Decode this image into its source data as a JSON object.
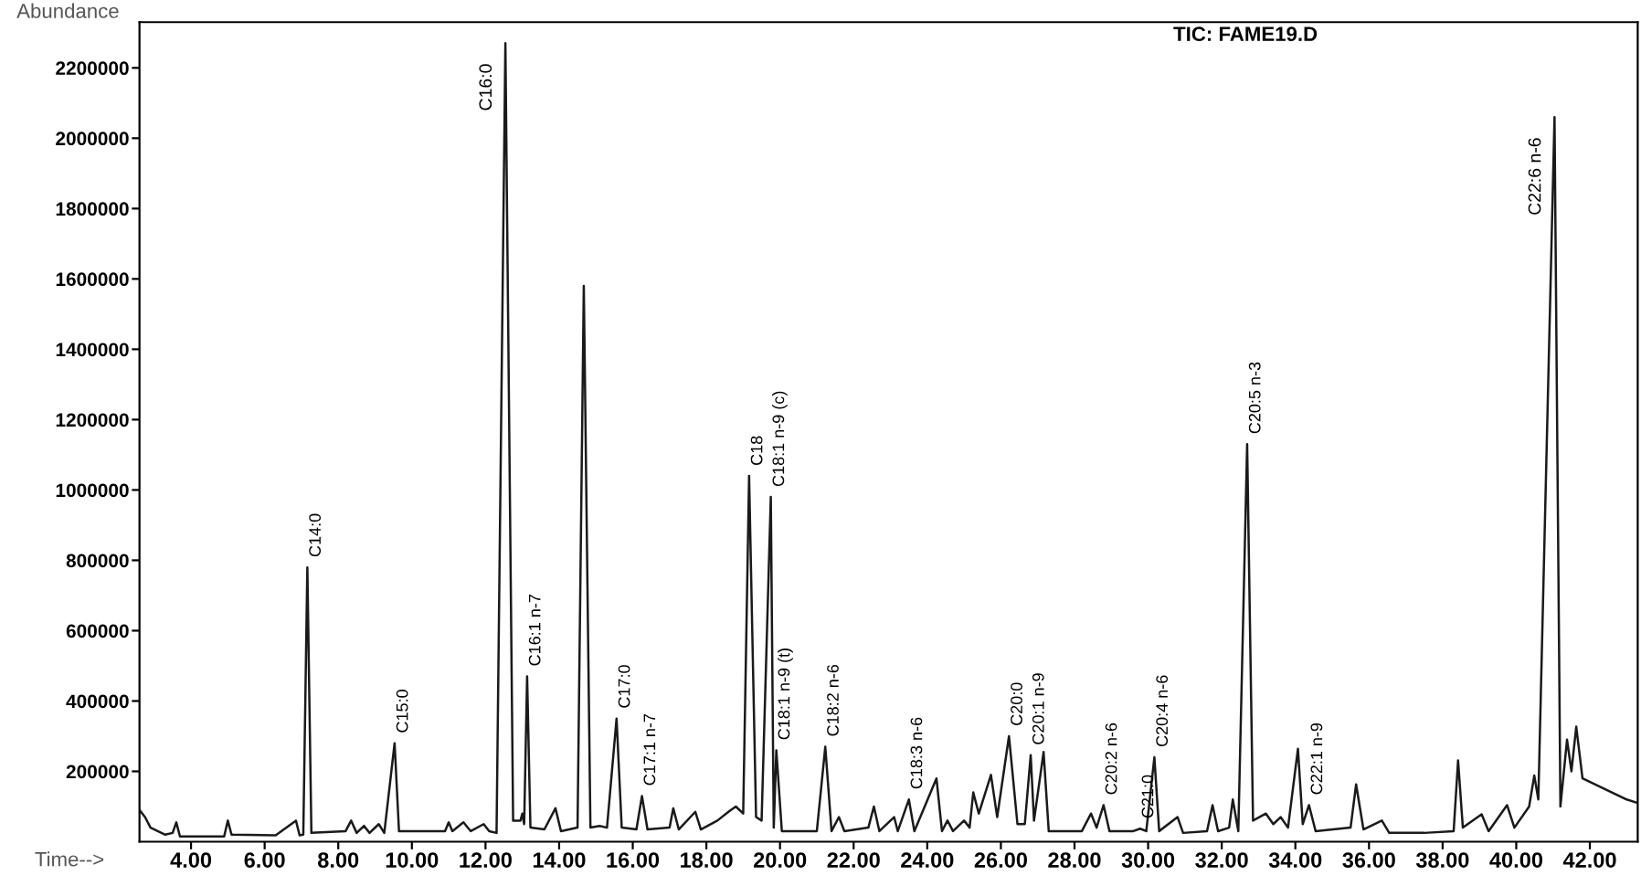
{
  "chart_data": {
    "type": "line",
    "xlabel": "Time-->",
    "ylabel": "Abundance",
    "x": [
      2.6,
      2.75,
      2.9,
      3.3,
      3.5,
      3.6,
      3.7,
      4.2,
      4.9,
      5.0,
      5.1,
      6.3,
      6.85,
      6.95,
      7.05,
      7.16,
      7.27,
      8.2,
      8.35,
      8.5,
      8.7,
      8.85,
      9.1,
      9.25,
      9.53,
      9.65,
      10.9,
      11.0,
      11.1,
      11.4,
      11.6,
      11.95,
      12.1,
      12.3,
      12.54,
      12.75,
      12.95,
      13.0,
      13.05,
      13.13,
      13.22,
      13.6,
      13.9,
      14.05,
      14.5,
      14.67,
      14.85,
      15.1,
      15.3,
      15.56,
      15.7,
      16.1,
      16.25,
      16.4,
      17.0,
      17.1,
      17.25,
      17.7,
      17.85,
      18.3,
      18.6,
      18.8,
      19.0,
      19.16,
      19.35,
      19.5,
      19.75,
      19.83,
      19.9,
      20.05,
      21.0,
      21.23,
      21.4,
      21.6,
      21.75,
      22.4,
      22.55,
      22.7,
      23.1,
      23.2,
      23.5,
      23.65,
      24.25,
      24.4,
      24.55,
      24.7,
      25.0,
      25.15,
      25.25,
      25.4,
      25.73,
      25.9,
      26.22,
      26.45,
      26.65,
      26.81,
      26.9,
      27.16,
      27.3,
      28.2,
      28.45,
      28.6,
      28.79,
      28.95,
      29.6,
      29.78,
      29.95,
      30.17,
      30.3,
      30.8,
      30.95,
      31.6,
      31.75,
      31.9,
      32.2,
      32.3,
      32.45,
      32.69,
      32.85,
      33.2,
      33.4,
      33.6,
      33.8,
      34.07,
      34.2,
      34.37,
      34.55,
      35.5,
      35.65,
      35.85,
      36.35,
      36.55,
      37.5,
      38.3,
      38.42,
      38.55,
      39.06,
      39.25,
      39.75,
      39.95,
      40.35,
      40.49,
      40.6,
      41.04,
      41.2,
      41.38,
      41.5,
      41.63,
      41.8,
      42.2,
      42.6,
      43.0,
      43.3
    ],
    "values": [
      90000,
      70000,
      40000,
      20000,
      25000,
      55000,
      15000,
      15000,
      15000,
      60000,
      20000,
      18000,
      60000,
      18000,
      20000,
      780000,
      25000,
      30000,
      60000,
      25000,
      45000,
      25000,
      50000,
      25000,
      280000,
      30000,
      30000,
      55000,
      30000,
      55000,
      30000,
      50000,
      30000,
      25000,
      2270000,
      60000,
      60000,
      80000,
      50000,
      470000,
      40000,
      35000,
      95000,
      30000,
      40000,
      1580000,
      40000,
      45000,
      40000,
      350000,
      40000,
      35000,
      130000,
      35000,
      40000,
      95000,
      35000,
      85000,
      35000,
      60000,
      85000,
      100000,
      80000,
      1040000,
      70000,
      60000,
      980000,
      40000,
      260000,
      30000,
      30000,
      270000,
      30000,
      70000,
      30000,
      40000,
      100000,
      30000,
      70000,
      30000,
      120000,
      30000,
      180000,
      30000,
      60000,
      30000,
      60000,
      40000,
      140000,
      80000,
      190000,
      70000,
      300000,
      50000,
      50000,
      246000,
      60000,
      255000,
      30000,
      30000,
      80000,
      40000,
      104000,
      30000,
      30000,
      37000,
      30000,
      240000,
      30000,
      70000,
      25000,
      30000,
      104000,
      30000,
      40000,
      120000,
      30000,
      1130000,
      60000,
      80000,
      50000,
      70000,
      40000,
      264000,
      50000,
      104000,
      30000,
      40000,
      163000,
      35000,
      60000,
      25000,
      25000,
      30000,
      231000,
      40000,
      78000,
      30000,
      104000,
      40000,
      100000,
      188000,
      120000,
      2060000,
      100000,
      290000,
      200000,
      327000,
      180000,
      160000,
      140000,
      120000,
      110000
    ],
    "color": "#1a1a1a",
    "line_style": "solid",
    "marker": "none",
    "grid": false,
    "legend": false,
    "xlim": [
      2.6,
      43.3
    ],
    "ylim": [
      0,
      2330000
    ],
    "xticks": [
      {
        "value": 4,
        "label": "4.00"
      },
      {
        "value": 6,
        "label": "6.00"
      },
      {
        "value": 8,
        "label": "8.00"
      },
      {
        "value": 10,
        "label": "10.00"
      },
      {
        "value": 12,
        "label": "12.00"
      },
      {
        "value": 14,
        "label": "14.00"
      },
      {
        "value": 16,
        "label": "16.00"
      },
      {
        "value": 18,
        "label": "18.00"
      },
      {
        "value": 20,
        "label": "20.00"
      },
      {
        "value": 22,
        "label": "22.00"
      },
      {
        "value": 24,
        "label": "24.00"
      },
      {
        "value": 26,
        "label": "26.00"
      },
      {
        "value": 28,
        "label": "28.00"
      },
      {
        "value": 30,
        "label": "30.00"
      },
      {
        "value": 32,
        "label": "32.00"
      },
      {
        "value": 34,
        "label": "34.00"
      },
      {
        "value": 36,
        "label": "36.00"
      },
      {
        "value": 38,
        "label": "38.00"
      },
      {
        "value": 40,
        "label": "40.00"
      },
      {
        "value": 42,
        "label": "42.00"
      }
    ],
    "yticks": [
      200000,
      400000,
      600000,
      800000,
      1000000,
      1200000,
      1400000,
      1600000,
      1800000,
      2000000,
      2200000
    ],
    "annotations": [
      "TIC: FAME19.D",
      {
        "text": "C14:0",
        "x": 7.16,
        "y": 780000
      },
      {
        "text": "C15:0",
        "x": 9.53,
        "y": 280000
      },
      {
        "text": "C16:0",
        "x": 12.54,
        "y": 2270000
      },
      {
        "text": "C16:1 n-7",
        "x": 13.13,
        "y": 470000
      },
      {
        "text": "C17:0",
        "x": 15.56,
        "y": 350000
      },
      {
        "text": "C17:1 n-7",
        "x": 16.25,
        "y": 130000
      },
      {
        "text": "C18",
        "x": 19.16,
        "y": 1040000
      },
      {
        "text": "C18:1 n-9 (c)",
        "x": 19.75,
        "y": 980000
      },
      {
        "text": "C18:1 n-9 (t)",
        "x": 19.9,
        "y": 260000
      },
      {
        "text": "C18:2 n-6",
        "x": 21.23,
        "y": 270000
      },
      {
        "text": "C18:3 n-6",
        "x": 23.5,
        "y": 120000
      },
      {
        "text": "C20:0",
        "x": 26.22,
        "y": 300000
      },
      {
        "text": "C20:1 n-9",
        "x": 26.81,
        "y": 246000
      },
      {
        "text": "C20:2 n-6",
        "x": 28.79,
        "y": 104000
      },
      {
        "text": "C21:0",
        "x": 29.78,
        "y": 37000
      },
      {
        "text": "C20:4 n-6",
        "x": 30.17,
        "y": 240000
      },
      {
        "text": "C20:5 n-3",
        "x": 32.69,
        "y": 1130000
      },
      {
        "text": "C22:1 n-9",
        "x": 34.37,
        "y": 104000
      },
      {
        "text": "C22:6 n-6",
        "x": 41.04,
        "y": 2060000
      }
    ]
  }
}
